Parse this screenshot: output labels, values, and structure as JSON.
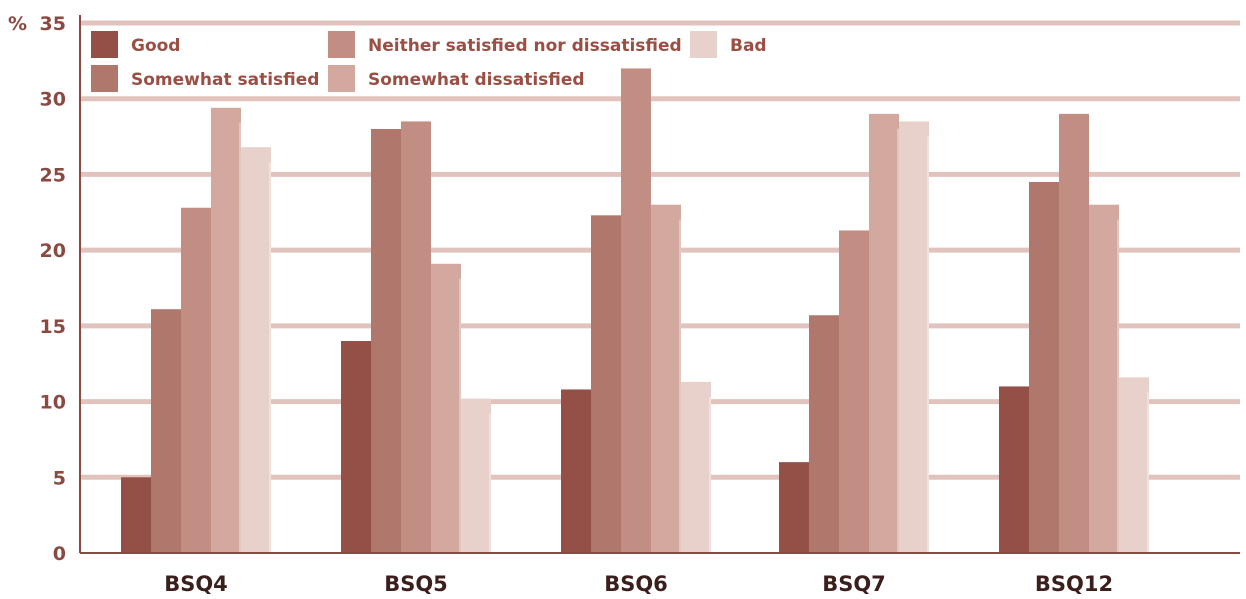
{
  "chart_data": {
    "type": "bar",
    "unit_label": "%",
    "categories": [
      "BSQ4",
      "BSQ5",
      "BSQ6",
      "BSQ7",
      "BSQ12"
    ],
    "ylim": [
      0,
      35
    ],
    "yticks": [
      0,
      5,
      10,
      15,
      20,
      25,
      30,
      35
    ],
    "grid": true,
    "legend_position": "top",
    "series": [
      {
        "name": "Good",
        "color": "#944f46",
        "values": [
          5,
          14,
          10.8,
          6,
          11
        ]
      },
      {
        "name": "Somewhat satisfied",
        "color": "#b0776c",
        "values": [
          16.1,
          28,
          22.3,
          15.7,
          24.5
        ]
      },
      {
        "name": "Neither satisfied nor dissatisfied",
        "color": "#c28e84",
        "values": [
          22.8,
          28.5,
          32,
          21.3,
          29
        ]
      },
      {
        "name": "Somewhat dissatisfied",
        "color": "#d3a99f",
        "values": [
          29.4,
          19.1,
          23,
          29,
          23
        ]
      },
      {
        "name": "Bad",
        "color": "#e8d1cb",
        "values": [
          26.8,
          10.2,
          11.3,
          28.5,
          11.6
        ]
      }
    ]
  }
}
